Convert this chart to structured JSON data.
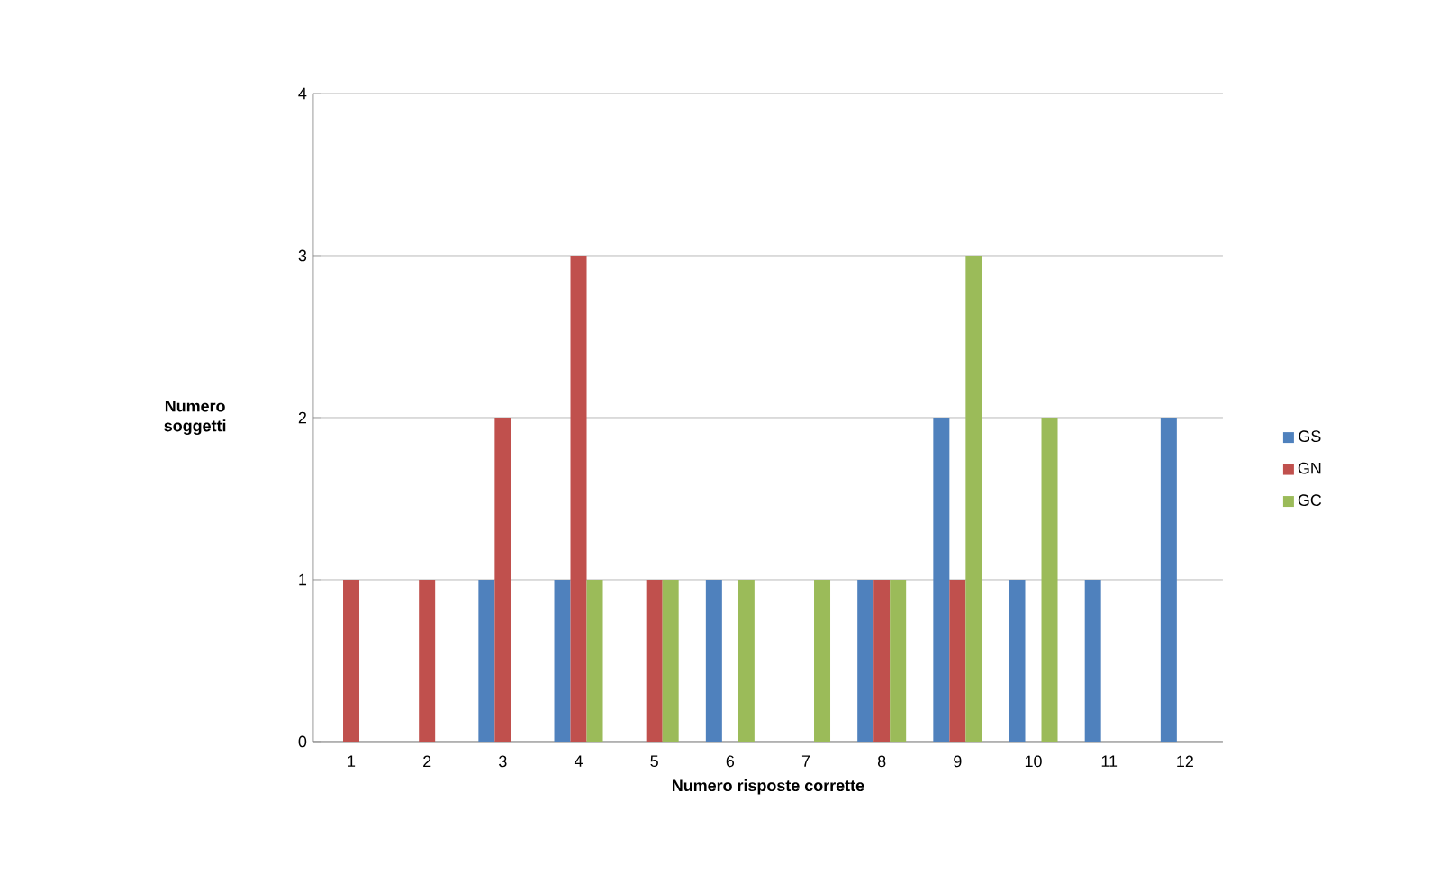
{
  "chart_data": {
    "type": "bar",
    "xlabel": "Numero risposte corrette",
    "ylabel": "Numero soggetti",
    "categories": [
      "1",
      "2",
      "3",
      "4",
      "5",
      "6",
      "7",
      "8",
      "9",
      "10",
      "11",
      "12"
    ],
    "series": [
      {
        "name": "GS",
        "color": "#4f81bd",
        "values": [
          0,
          0,
          1,
          1,
          0,
          1,
          0,
          1,
          2,
          1,
          1,
          2
        ]
      },
      {
        "name": "GN",
        "color": "#c0504d",
        "values": [
          1,
          1,
          2,
          3,
          1,
          0,
          0,
          1,
          1,
          0,
          0,
          0
        ]
      },
      {
        "name": "GC",
        "color": "#9bbb59",
        "values": [
          0,
          0,
          0,
          1,
          1,
          1,
          1,
          1,
          3,
          2,
          0,
          0
        ]
      }
    ],
    "ylim": [
      0,
      4
    ],
    "yticks": [
      0,
      1,
      2,
      3,
      4
    ],
    "grid": "y",
    "legend": "right"
  }
}
